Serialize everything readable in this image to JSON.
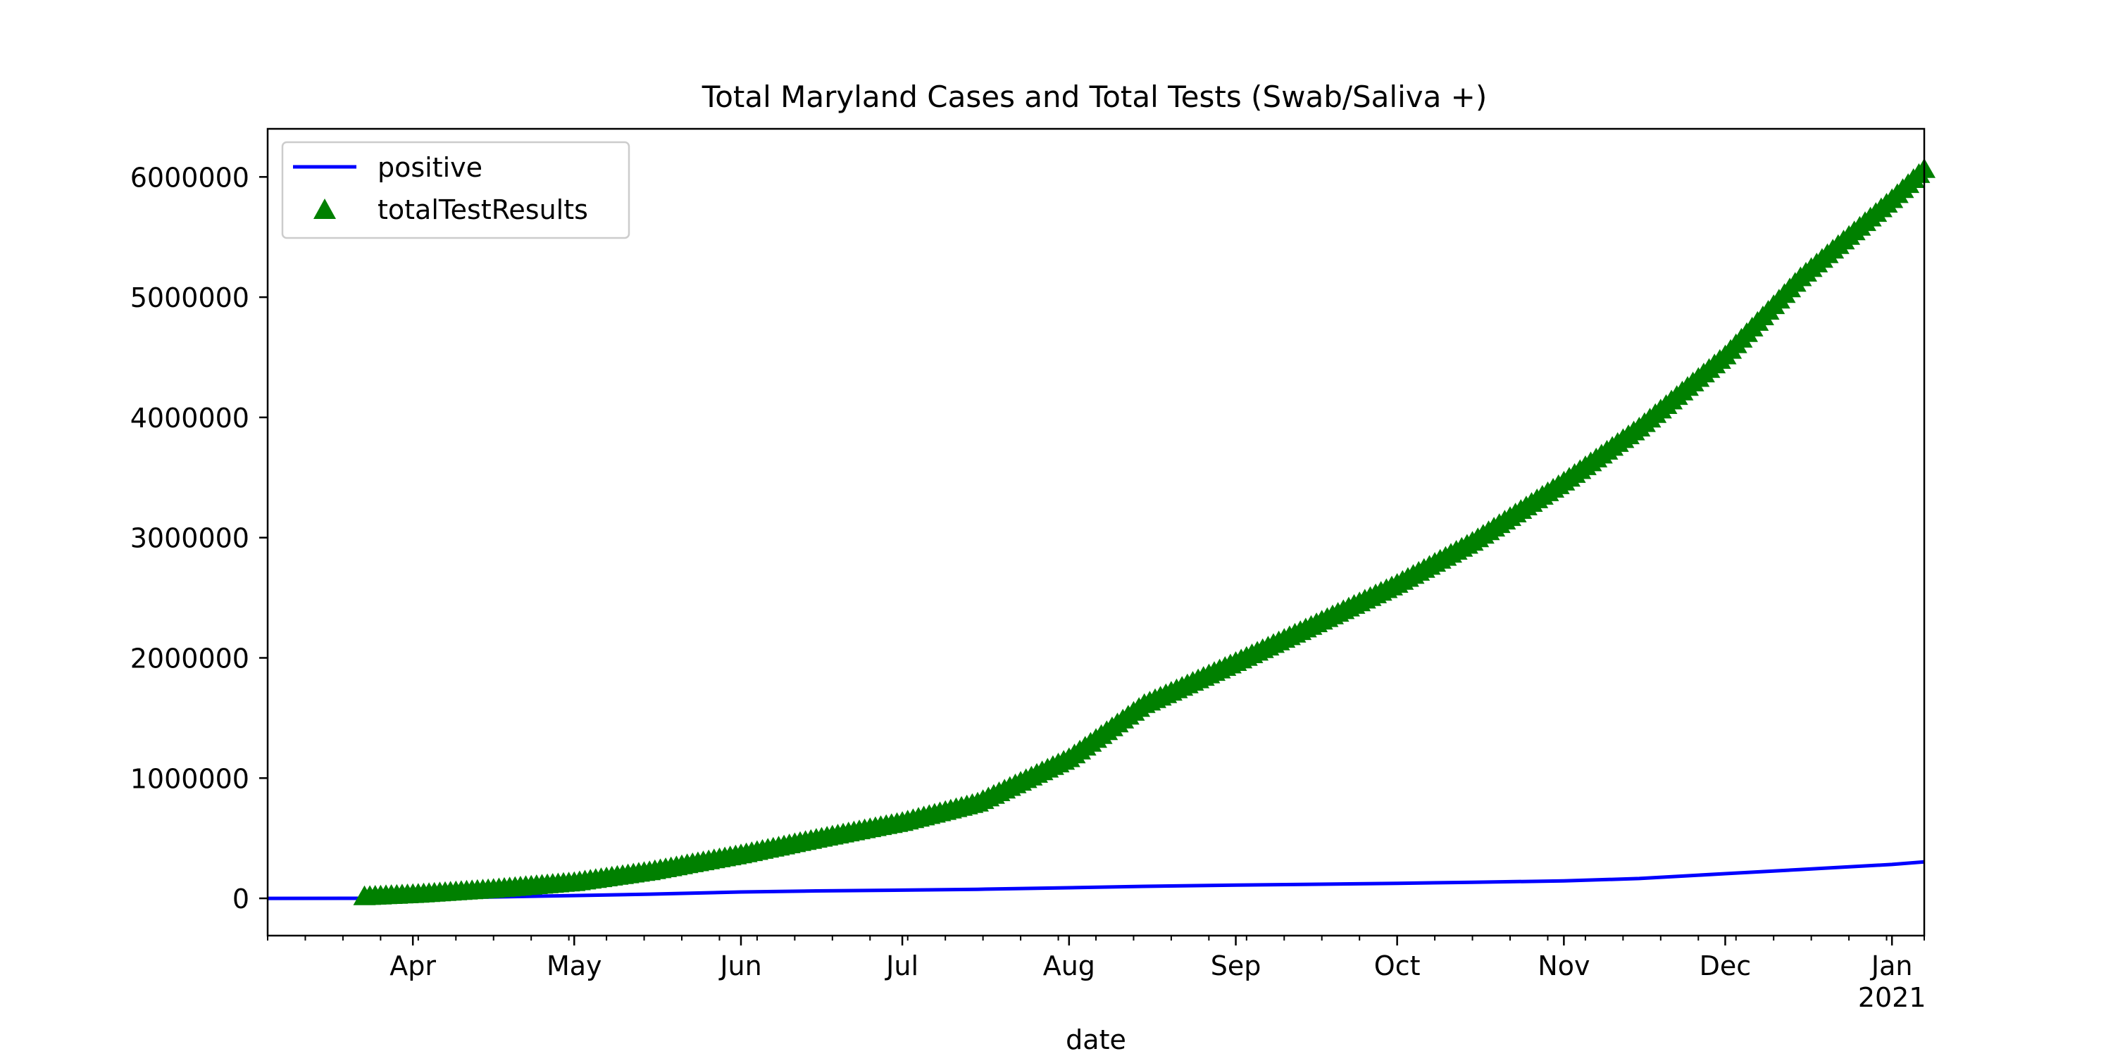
{
  "chart_data": {
    "type": "line",
    "title": "Total Maryland Cases and Total Tests (Swab/Saliva +)",
    "xlabel": "date",
    "ylabel": "",
    "x_range": [
      "2020-03-05",
      "2021-01-07"
    ],
    "ylim": [
      -310000,
      6400000
    ],
    "y_ticks": [
      0,
      1000000,
      2000000,
      3000000,
      4000000,
      5000000,
      6000000
    ],
    "y_tick_labels": [
      "0",
      "1000000",
      "2000000",
      "3000000",
      "4000000",
      "5000000",
      "6000000"
    ],
    "x_ticks": [
      {
        "date": "2020-04-01",
        "label": "Apr"
      },
      {
        "date": "2020-05-01",
        "label": "May"
      },
      {
        "date": "2020-06-01",
        "label": "Jun"
      },
      {
        "date": "2020-07-01",
        "label": "Jul"
      },
      {
        "date": "2020-08-01",
        "label": "Aug"
      },
      {
        "date": "2020-09-01",
        "label": "Sep"
      },
      {
        "date": "2020-10-01",
        "label": "Oct"
      },
      {
        "date": "2020-11-01",
        "label": "Nov"
      },
      {
        "date": "2020-12-01",
        "label": "Dec"
      },
      {
        "date": "2021-01-01",
        "label": "Jan",
        "sublabel": "2021"
      }
    ],
    "grid": false,
    "legend": {
      "position": "top-left"
    },
    "series": [
      {
        "name": "positive",
        "kind": "line",
        "color": "#0000ff",
        "points": [
          [
            "2020-03-05",
            0
          ],
          [
            "2020-03-20",
            100
          ],
          [
            "2020-04-01",
            2000
          ],
          [
            "2020-04-15",
            10000
          ],
          [
            "2020-05-01",
            23000
          ],
          [
            "2020-05-15",
            35000
          ],
          [
            "2020-06-01",
            53000
          ],
          [
            "2020-06-15",
            62000
          ],
          [
            "2020-07-01",
            68000
          ],
          [
            "2020-07-15",
            75000
          ],
          [
            "2020-08-01",
            88000
          ],
          [
            "2020-08-15",
            100000
          ],
          [
            "2020-09-01",
            110000
          ],
          [
            "2020-09-15",
            117000
          ],
          [
            "2020-10-01",
            125000
          ],
          [
            "2020-10-15",
            134000
          ],
          [
            "2020-11-01",
            145000
          ],
          [
            "2020-11-15",
            165000
          ],
          [
            "2020-12-01",
            205000
          ],
          [
            "2020-12-15",
            240000
          ],
          [
            "2021-01-01",
            282000
          ],
          [
            "2021-01-07",
            303000
          ]
        ]
      },
      {
        "name": "totalTestResults",
        "kind": "scatter",
        "marker": "triangle-up",
        "color": "#008000",
        "points": [
          [
            "2020-03-23",
            2000
          ],
          [
            "2020-04-01",
            20000
          ],
          [
            "2020-04-15",
            60000
          ],
          [
            "2020-05-01",
            120000
          ],
          [
            "2020-05-15",
            210000
          ],
          [
            "2020-06-01",
            350000
          ],
          [
            "2020-06-15",
            480000
          ],
          [
            "2020-07-01",
            620000
          ],
          [
            "2020-07-15",
            780000
          ],
          [
            "2020-08-01",
            1150000
          ],
          [
            "2020-08-15",
            1600000
          ],
          [
            "2020-09-01",
            1950000
          ],
          [
            "2020-09-15",
            2250000
          ],
          [
            "2020-10-01",
            2600000
          ],
          [
            "2020-10-15",
            2950000
          ],
          [
            "2020-11-01",
            3450000
          ],
          [
            "2020-11-15",
            3900000
          ],
          [
            "2020-12-01",
            4500000
          ],
          [
            "2020-12-15",
            5150000
          ],
          [
            "2021-01-01",
            5800000
          ],
          [
            "2021-01-07",
            6050000
          ]
        ]
      }
    ]
  }
}
